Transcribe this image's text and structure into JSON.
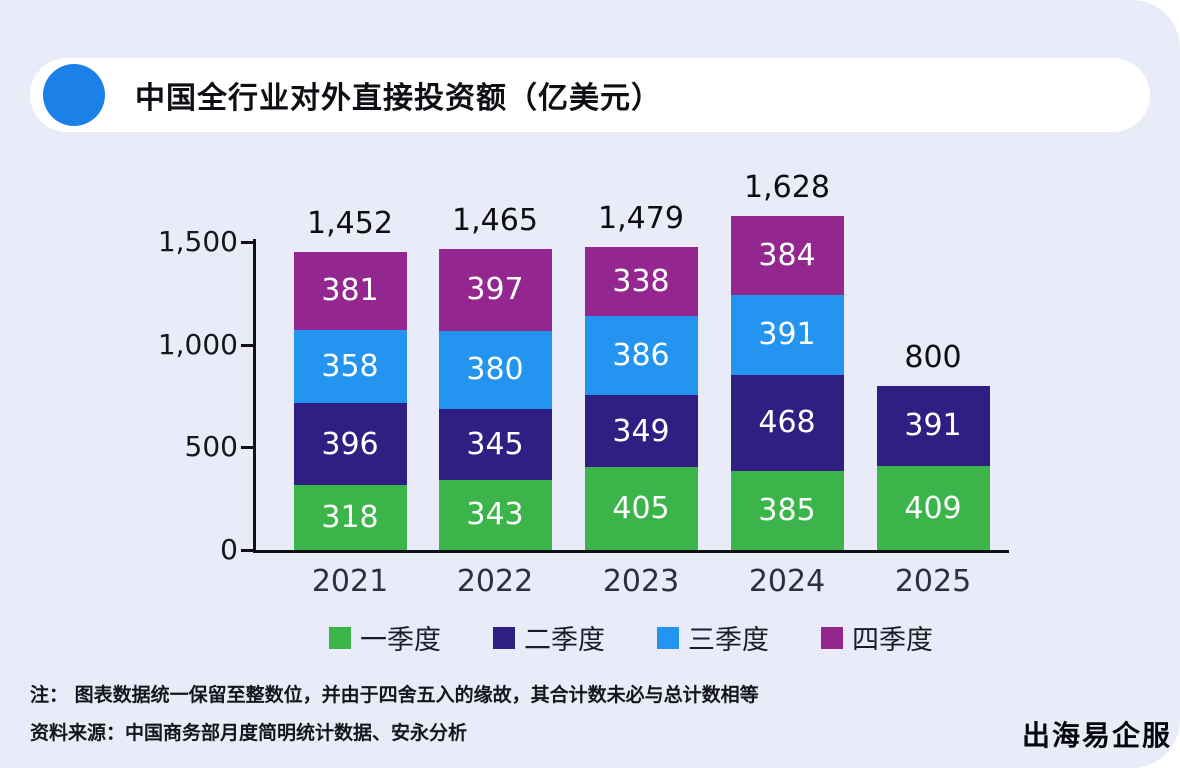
{
  "header": {
    "title": "中国全行业对外直接投资额（亿美元）"
  },
  "chart_data": {
    "type": "bar",
    "stacked": true,
    "title": "中国全行业对外直接投资额（亿美元）",
    "categories": [
      "2021",
      "2022",
      "2023",
      "2024",
      "2025"
    ],
    "series": [
      {
        "name": "一季度",
        "color": "#3bb54a",
        "values": [
          318,
          343,
          405,
          385,
          409
        ]
      },
      {
        "name": "二季度",
        "color": "#2f1f82",
        "values": [
          396,
          345,
          349,
          468,
          391
        ]
      },
      {
        "name": "三季度",
        "color": "#2394ef",
        "values": [
          358,
          380,
          386,
          391,
          null
        ]
      },
      {
        "name": "四季度",
        "color": "#93278f",
        "values": [
          381,
          397,
          338,
          384,
          null
        ]
      }
    ],
    "totals_display": [
      "1,452",
      "1,465",
      "1,479",
      "1,628",
      "800"
    ],
    "y_ticks": [
      "1,500",
      "1,000",
      "500",
      "0"
    ],
    "ylim": [
      0,
      1500
    ],
    "grid": false,
    "legend_position": "bottom"
  },
  "notes": {
    "line1": "注： 图表数据统一保留至整数位，并由于四舍五入的缘故，其合计数未必与总计数相等",
    "line2": "资料来源：中国商务部月度简明统计数据、安永分析"
  },
  "watermark": {
    "text": "出海易企服"
  }
}
